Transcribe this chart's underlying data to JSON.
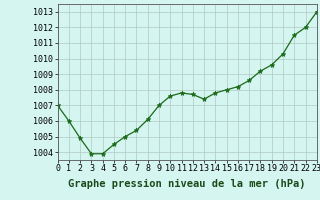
{
  "x": [
    0,
    1,
    2,
    3,
    4,
    5,
    6,
    7,
    8,
    9,
    10,
    11,
    12,
    13,
    14,
    15,
    16,
    17,
    18,
    19,
    20,
    21,
    22,
    23
  ],
  "y": [
    1007.0,
    1006.0,
    1004.9,
    1003.9,
    1003.9,
    1004.5,
    1005.0,
    1005.4,
    1006.1,
    1007.0,
    1007.6,
    1007.8,
    1007.7,
    1007.4,
    1007.8,
    1008.0,
    1008.2,
    1008.6,
    1009.2,
    1009.6,
    1010.3,
    1011.5,
    1012.0,
    1013.0
  ],
  "line_color": "#1a6b1a",
  "marker": "*",
  "marker_size": 3.5,
  "bg_color": "#d5f5f0",
  "grid_color": "#b0c8c4",
  "xlabel": "Graphe pression niveau de la mer (hPa)",
  "ylim_min": 1003.5,
  "ylim_max": 1013.5,
  "xlabel_fontsize": 7.5,
  "tick_fontsize": 6.0,
  "yticks": [
    1004,
    1005,
    1006,
    1007,
    1008,
    1009,
    1010,
    1011,
    1012,
    1013
  ],
  "xtick_labels": [
    "0",
    "1",
    "2",
    "3",
    "4",
    "5",
    "6",
    "7",
    "8",
    "9",
    "10",
    "11",
    "12",
    "13",
    "14",
    "15",
    "16",
    "17",
    "18",
    "19",
    "20",
    "21",
    "22",
    "23"
  ]
}
